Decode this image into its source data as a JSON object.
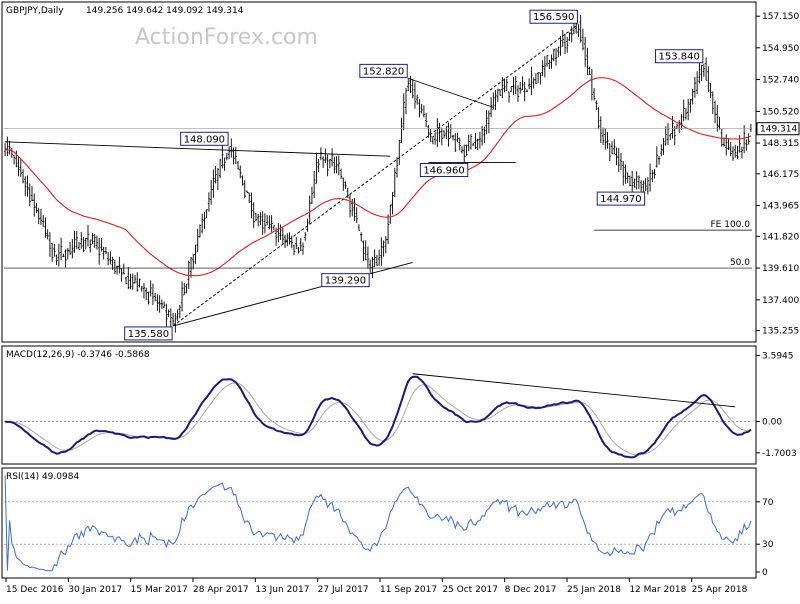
{
  "chart_data": {
    "type": "bar",
    "symbol_title": "GBPJPY,Daily",
    "ohlc_header": "149.256 149.642 149.092 149.314",
    "watermark": "ActionForex.com",
    "price_axis": {
      "ticks": [
        "157.150",
        "154.950",
        "152.740",
        "150.520",
        "148.315",
        "146.175",
        "143.965",
        "141.820",
        "139.610",
        "137.400",
        "135.255"
      ],
      "range": [
        134.6,
        158.0
      ],
      "current_price": 149.314,
      "current_label": "149.314"
    },
    "x_axis": {
      "labels": [
        "15 Dec 2016",
        "30 Jan 2017",
        "15 Mar 2017",
        "28 Apr 2017",
        "13 Jun 2017",
        "27 Jul 2017",
        "11 Sep 2017",
        "25 Oct 2017",
        "8 Dec 2017",
        "25 Jan 2018",
        "12 Mar 2018",
        "25 Apr 2018"
      ]
    },
    "price_series": {
      "keypoints": [
        {
          "b": 0,
          "p": 148.3
        },
        {
          "b": 10,
          "p": 145.2
        },
        {
          "b": 22,
          "p": 140.4
        },
        {
          "b": 38,
          "p": 141.6
        },
        {
          "b": 52,
          "p": 139.2
        },
        {
          "b": 66,
          "p": 137.6
        },
        {
          "b": 75,
          "p": 135.58
        },
        {
          "b": 92,
          "p": 145.1
        },
        {
          "b": 100,
          "p": 148.09
        },
        {
          "b": 112,
          "p": 143.0
        },
        {
          "b": 122,
          "p": 142.0
        },
        {
          "b": 132,
          "p": 140.8
        },
        {
          "b": 140,
          "p": 147.2
        },
        {
          "b": 148,
          "p": 146.8
        },
        {
          "b": 156,
          "p": 143.2
        },
        {
          "b": 163,
          "p": 139.29
        },
        {
          "b": 170,
          "p": 141.6
        },
        {
          "b": 176,
          "p": 148.5
        },
        {
          "b": 180,
          "p": 152.82
        },
        {
          "b": 190,
          "p": 148.4
        },
        {
          "b": 197,
          "p": 149.5
        },
        {
          "b": 203,
          "p": 147.8
        },
        {
          "b": 212,
          "p": 148.6
        },
        {
          "b": 220,
          "p": 152.0
        },
        {
          "b": 232,
          "p": 152.1
        },
        {
          "b": 244,
          "p": 154.2
        },
        {
          "b": 256,
          "p": 156.59
        },
        {
          "b": 266,
          "p": 149.0
        },
        {
          "b": 278,
          "p": 146.0
        },
        {
          "b": 286,
          "p": 144.97
        },
        {
          "b": 294,
          "p": 148.4
        },
        {
          "b": 304,
          "p": 150.4
        },
        {
          "b": 312,
          "p": 153.84
        },
        {
          "b": 320,
          "p": 148.2
        },
        {
          "b": 326,
          "p": 147.3
        },
        {
          "b": 333,
          "p": 149.314
        }
      ]
    },
    "moving_average": {
      "period": 55,
      "color": "#e02020"
    },
    "annotations": [
      {
        "label": "152.820",
        "price": 152.82
      },
      {
        "label": "156.590",
        "price": 156.59
      },
      {
        "label": "153.840",
        "price": 153.84
      },
      {
        "label": "148.090",
        "price": 148.09
      },
      {
        "label": "146.960",
        "price": 146.96
      },
      {
        "label": "144.970",
        "price": 144.97
      },
      {
        "label": "139.290",
        "price": 139.29
      },
      {
        "label": "135.580",
        "price": 135.58
      }
    ],
    "levels": [
      {
        "label": "FE 100.0",
        "price": 142.25
      },
      {
        "label": "50.0",
        "price": 139.61
      }
    ],
    "macd": {
      "title": "MACD(12,26,9) -0.3746 -0.5868",
      "ticks": [
        "3.5945",
        "0.00",
        "-1.7003"
      ],
      "range": [
        -2.2,
        4.0
      ],
      "zero_label": "0.00"
    },
    "rsi": {
      "title": "RSI(14) 49.0984",
      "ticks": [
        "70",
        "30",
        "0"
      ],
      "range": [
        0,
        100
      ],
      "levels": [
        70,
        30
      ]
    },
    "colors": {
      "bars": "#000000",
      "ma": "#e02020",
      "macd_line": "#1a1a7a",
      "signal_line": "#aaaaaa",
      "rsi_line": "#3a6fd8",
      "box_border": "#1a237e"
    }
  }
}
